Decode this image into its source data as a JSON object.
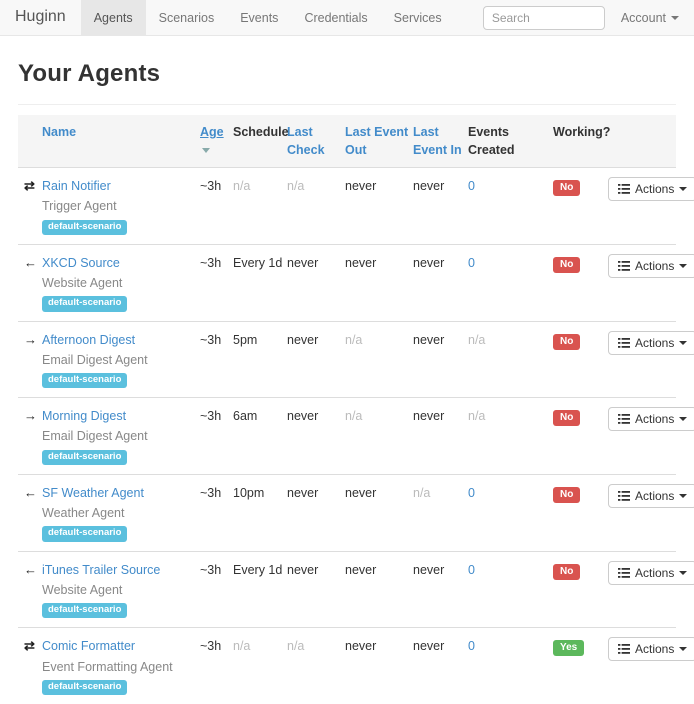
{
  "nav": {
    "brand": "Huginn",
    "items": [
      {
        "label": "Agents",
        "active": true
      },
      {
        "label": "Scenarios",
        "active": false
      },
      {
        "label": "Events",
        "active": false
      },
      {
        "label": "Credentials",
        "active": false
      },
      {
        "label": "Services",
        "active": false
      }
    ],
    "search_placeholder": "Search",
    "account_label": "Account"
  },
  "page": {
    "title": "Your Agents"
  },
  "icons": {
    "glyphs": {
      "transfer": "⇄",
      "arrow-left": "←",
      "arrow-right": "→"
    }
  },
  "colors": {
    "link": "#428bca",
    "badge_info": "#5bc0de",
    "badge_danger": "#d9534f",
    "badge_success": "#5cb85c",
    "navbar_bg": "#f8f8f8",
    "active_tab_bg": "#e7e7e7",
    "muted_text": "#bbbbbb"
  },
  "table": {
    "headers": {
      "name": "Name",
      "age": "Age",
      "schedule": "Schedule",
      "last_check": "Last Check",
      "last_event_out": "Last Event Out",
      "last_event_in": "Last Event In",
      "events_created": "Events Created",
      "working": "Working?"
    },
    "sorted_by": "age",
    "actions_label": "Actions",
    "rows": [
      {
        "icon": "transfer",
        "name": "Rain Notifier",
        "type": "Trigger Agent",
        "scenario": "default-scenario",
        "age": "~3h",
        "schedule": "n/a",
        "last_check": "n/a",
        "last_event_out": "never",
        "last_event_in": "never",
        "events_created": "0",
        "working": "No",
        "working_ok": false
      },
      {
        "icon": "arrow-left",
        "name": "XKCD Source",
        "type": "Website Agent",
        "scenario": "default-scenario",
        "age": "~3h",
        "schedule": "Every 1d",
        "last_check": "never",
        "last_event_out": "never",
        "last_event_in": "never",
        "events_created": "0",
        "working": "No",
        "working_ok": false
      },
      {
        "icon": "arrow-right",
        "name": "Afternoon Digest",
        "type": "Email Digest Agent",
        "scenario": "default-scenario",
        "age": "~3h",
        "schedule": "5pm",
        "last_check": "never",
        "last_event_out": "n/a",
        "last_event_in": "never",
        "events_created": "n/a",
        "working": "No",
        "working_ok": false
      },
      {
        "icon": "arrow-right",
        "name": "Morning Digest",
        "type": "Email Digest Agent",
        "scenario": "default-scenario",
        "age": "~3h",
        "schedule": "6am",
        "last_check": "never",
        "last_event_out": "n/a",
        "last_event_in": "never",
        "events_created": "n/a",
        "working": "No",
        "working_ok": false
      },
      {
        "icon": "arrow-left",
        "name": "SF Weather Agent",
        "type": "Weather Agent",
        "scenario": "default-scenario",
        "age": "~3h",
        "schedule": "10pm",
        "last_check": "never",
        "last_event_out": "never",
        "last_event_in": "n/a",
        "events_created": "0",
        "working": "No",
        "working_ok": false
      },
      {
        "icon": "arrow-left",
        "name": "iTunes Trailer Source",
        "type": "Website Agent",
        "scenario": "default-scenario",
        "age": "~3h",
        "schedule": "Every 1d",
        "last_check": "never",
        "last_event_out": "never",
        "last_event_in": "never",
        "events_created": "0",
        "working": "No",
        "working_ok": false
      },
      {
        "icon": "transfer",
        "name": "Comic Formatter",
        "type": "Event Formatting Agent",
        "scenario": "default-scenario",
        "age": "~3h",
        "schedule": "n/a",
        "last_check": "n/a",
        "last_event_out": "never",
        "last_event_in": "never",
        "events_created": "0",
        "working": "Yes",
        "working_ok": true
      }
    ]
  }
}
